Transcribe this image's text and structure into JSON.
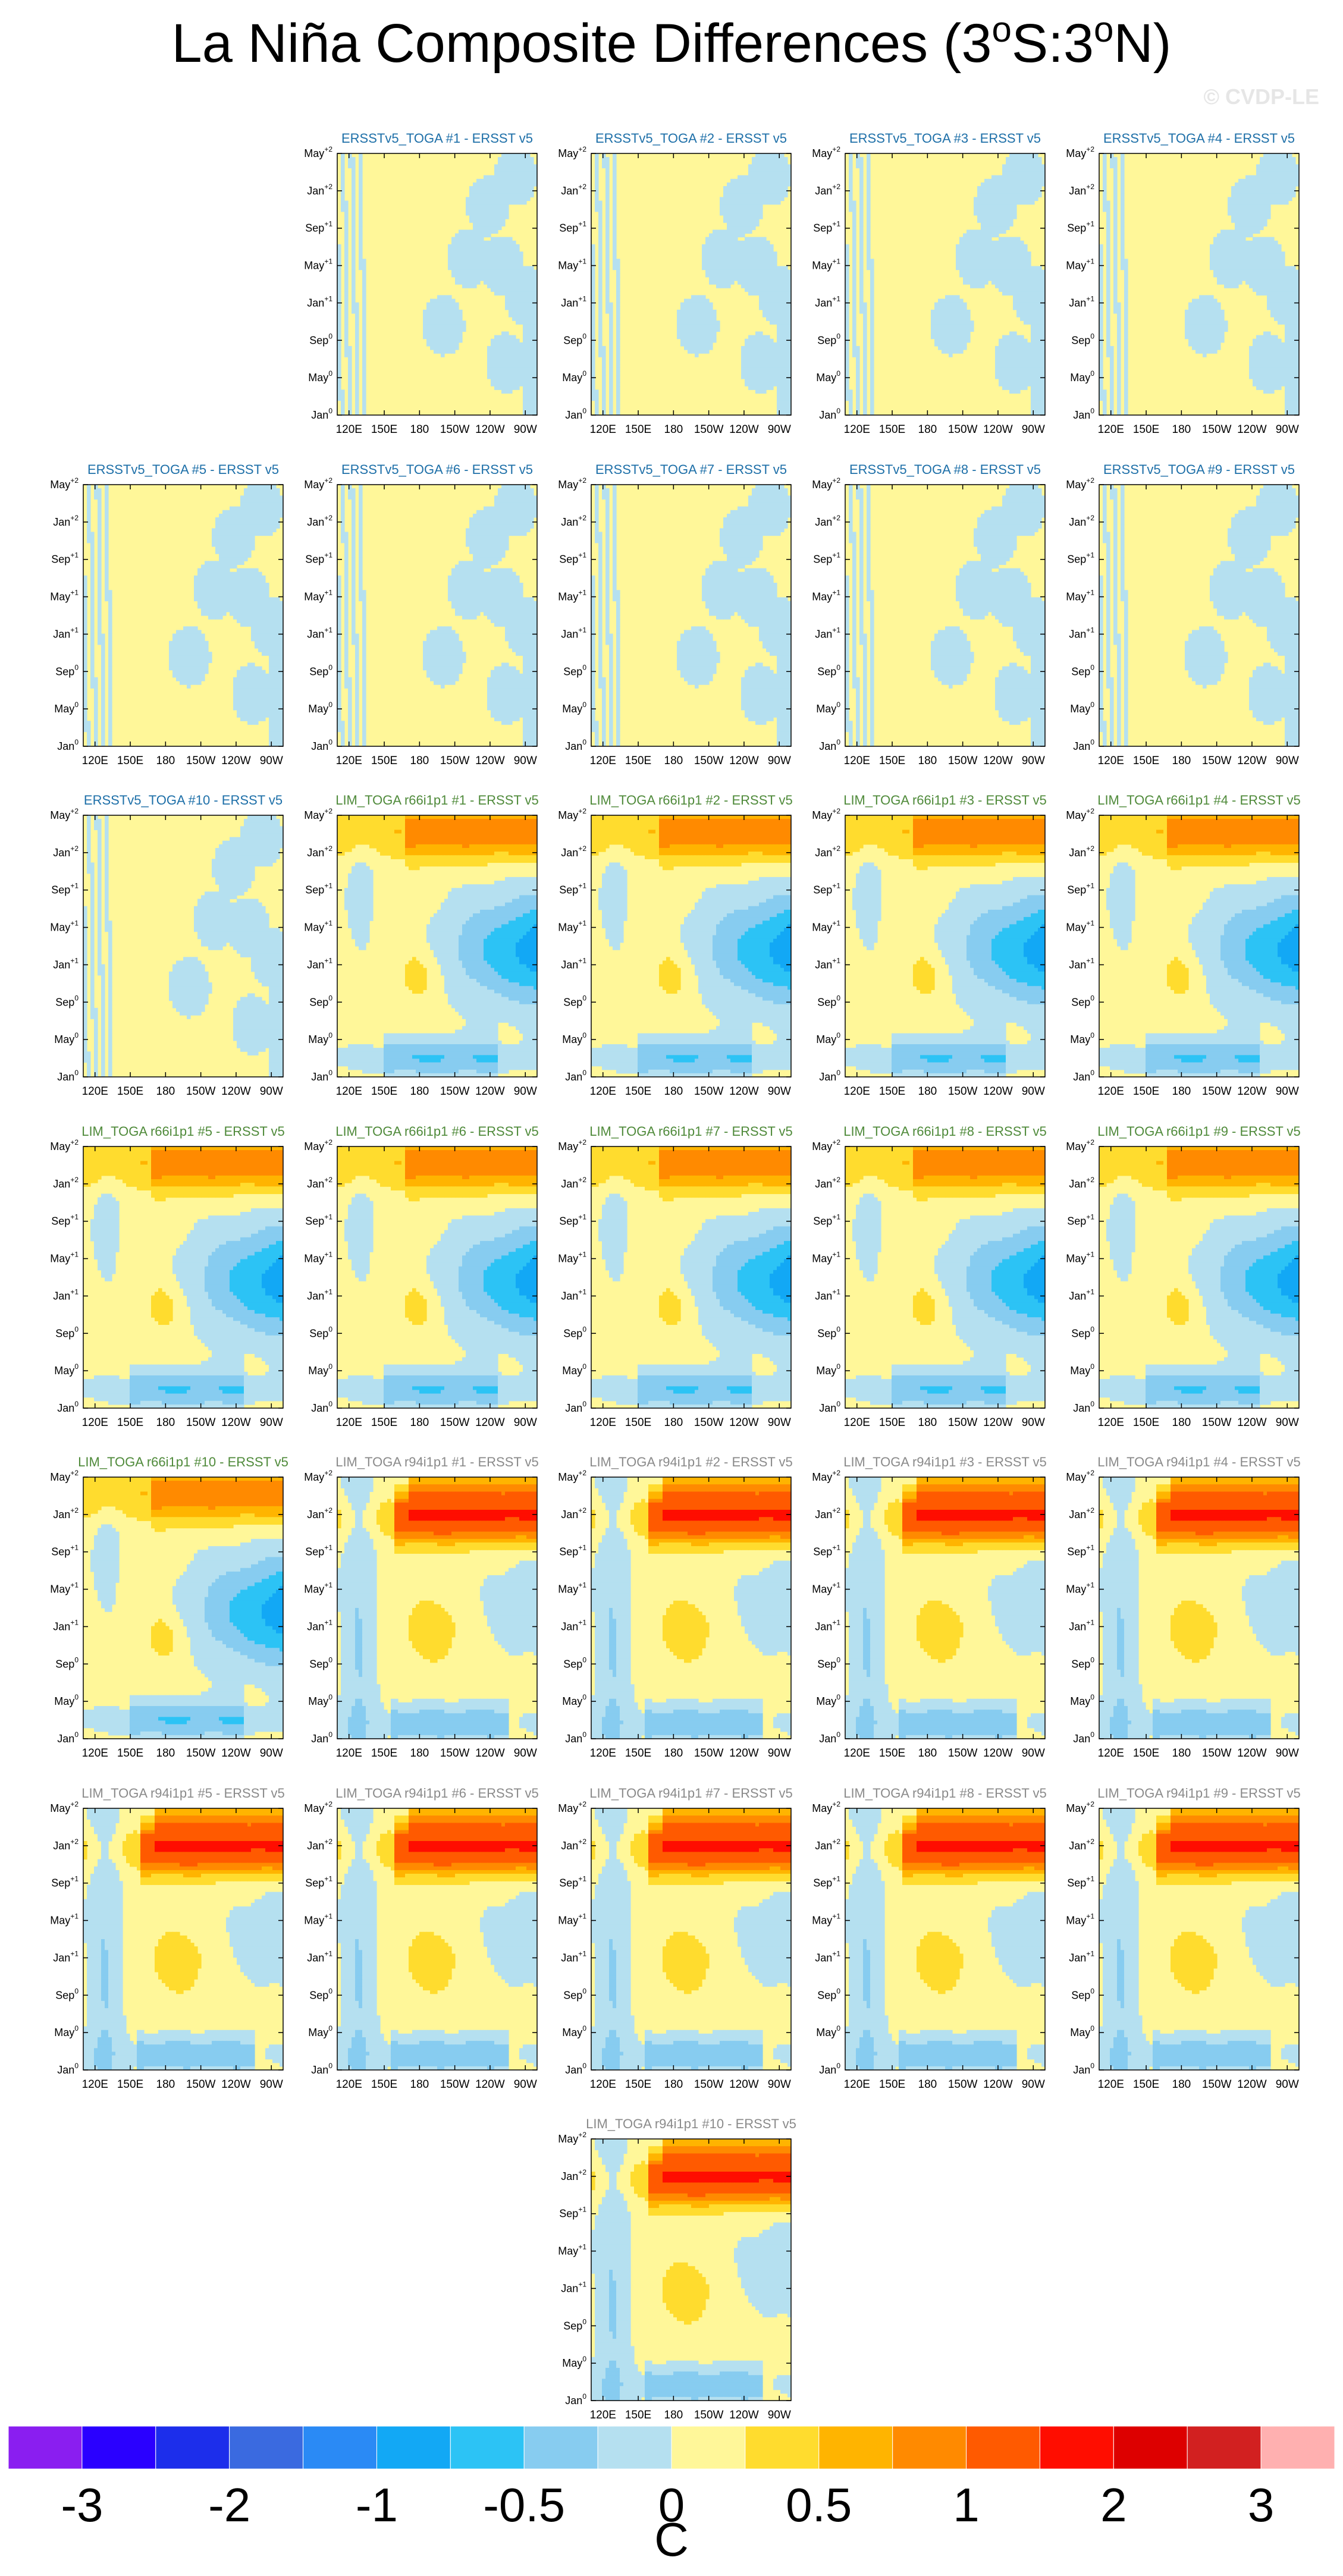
{
  "title": {
    "pre": "La Niña Composite Differences (3",
    "deg1": "o",
    "mid": "S:3",
    "deg2": "o",
    "post": "N)"
  },
  "watermark": "© CVDP-LE",
  "chart_data": {
    "type": "heatmap",
    "variable": "Hovmöller composite difference of SST along the equator (3°S:3°N)",
    "x_tick_labels": [
      "120E",
      "150E",
      "180",
      "150W",
      "120W",
      "90W"
    ],
    "x_ticks_deg_east": [
      120,
      150,
      180,
      210,
      240,
      270
    ],
    "xlim_deg_east": [
      110,
      280
    ],
    "y_tick_labels": [
      {
        "base": "Jan",
        "sup": "0"
      },
      {
        "base": "May",
        "sup": "0"
      },
      {
        "base": "Sep",
        "sup": "0"
      },
      {
        "base": "Jan",
        "sup": "+1"
      },
      {
        "base": "May",
        "sup": "+1"
      },
      {
        "base": "Sep",
        "sup": "+1"
      },
      {
        "base": "Jan",
        "sup": "+2"
      },
      {
        "base": "May",
        "sup": "+2"
      }
    ],
    "colorbar": {
      "units": "C",
      "levels": [
        -3,
        -2.5,
        -2,
        -1.5,
        -1,
        -0.75,
        -0.5,
        -0.25,
        0,
        0.25,
        0.5,
        0.75,
        1,
        1.5,
        2,
        2.5,
        3
      ],
      "tick_labels": [
        "-3",
        "-2",
        "-1",
        "-0.5",
        "0",
        "0.5",
        "1",
        "2",
        "3"
      ],
      "colors": [
        "#8a1ef0",
        "#2a00ff",
        "#1c2eeb",
        "#3a6ae0",
        "#2a8af5",
        "#12a8f5",
        "#2cc3f5",
        "#87ccf0",
        "#b5e0f0",
        "#fff799",
        "#ffdc2e",
        "#ffb400",
        "#ff8a00",
        "#ff5a00",
        "#ff0d00",
        "#dd0000",
        "#d22020",
        "#ffb0b0"
      ]
    },
    "panels": [
      {
        "title": "ERSSTv5_TOGA #1 - ERSST v5",
        "group": "obs"
      },
      {
        "title": "ERSSTv5_TOGA #2 - ERSST v5",
        "group": "obs"
      },
      {
        "title": "ERSSTv5_TOGA #3 - ERSST v5",
        "group": "obs"
      },
      {
        "title": "ERSSTv5_TOGA #4 - ERSST v5",
        "group": "obs"
      },
      {
        "title": "ERSSTv5_TOGA #5 - ERSST v5",
        "group": "obs"
      },
      {
        "title": "ERSSTv5_TOGA #6 - ERSST v5",
        "group": "obs"
      },
      {
        "title": "ERSSTv5_TOGA #7 - ERSST v5",
        "group": "obs"
      },
      {
        "title": "ERSSTv5_TOGA #8 - ERSST v5",
        "group": "obs"
      },
      {
        "title": "ERSSTv5_TOGA #9 - ERSST v5",
        "group": "obs"
      },
      {
        "title": "ERSSTv5_TOGA #10 - ERSST v5",
        "group": "obs"
      },
      {
        "title": "LIM_TOGA r66i1p1 #1 - ERSST v5",
        "group": "r66"
      },
      {
        "title": "LIM_TOGA r66i1p1 #2 - ERSST v5",
        "group": "r66"
      },
      {
        "title": "LIM_TOGA r66i1p1 #3 - ERSST v5",
        "group": "r66"
      },
      {
        "title": "LIM_TOGA r66i1p1 #4 - ERSST v5",
        "group": "r66"
      },
      {
        "title": "LIM_TOGA r66i1p1 #5 - ERSST v5",
        "group": "r66"
      },
      {
        "title": "LIM_TOGA r66i1p1 #6 - ERSST v5",
        "group": "r66"
      },
      {
        "title": "LIM_TOGA r66i1p1 #7 - ERSST v5",
        "group": "r66"
      },
      {
        "title": "LIM_TOGA r66i1p1 #8 - ERSST v5",
        "group": "r66"
      },
      {
        "title": "LIM_TOGA r66i1p1 #9 - ERSST v5",
        "group": "r66"
      },
      {
        "title": "LIM_TOGA r66i1p1 #10 - ERSST v5",
        "group": "r66"
      },
      {
        "title": "LIM_TOGA r94i1p1 #1 - ERSST v5",
        "group": "r94"
      },
      {
        "title": "LIM_TOGA r94i1p1 #2 - ERSST v5",
        "group": "r94"
      },
      {
        "title": "LIM_TOGA r94i1p1 #3 - ERSST v5",
        "group": "r94"
      },
      {
        "title": "LIM_TOGA r94i1p1 #4 - ERSST v5",
        "group": "r94"
      },
      {
        "title": "LIM_TOGA r94i1p1 #5 - ERSST v5",
        "group": "r94"
      },
      {
        "title": "LIM_TOGA r94i1p1 #6 - ERSST v5",
        "group": "r94"
      },
      {
        "title": "LIM_TOGA r94i1p1 #7 - ERSST v5",
        "group": "r94"
      },
      {
        "title": "LIM_TOGA r94i1p1 #8 - ERSST v5",
        "group": "r94"
      },
      {
        "title": "LIM_TOGA r94i1p1 #9 - ERSST v5",
        "group": "r94"
      },
      {
        "title": "LIM_TOGA r94i1p1 #10 - ERSST v5",
        "group": "r94"
      }
    ],
    "title_colors": {
      "obs": "#1d6fa8",
      "r66": "#4f8a3a",
      "r94": "#8a8a8a"
    }
  }
}
